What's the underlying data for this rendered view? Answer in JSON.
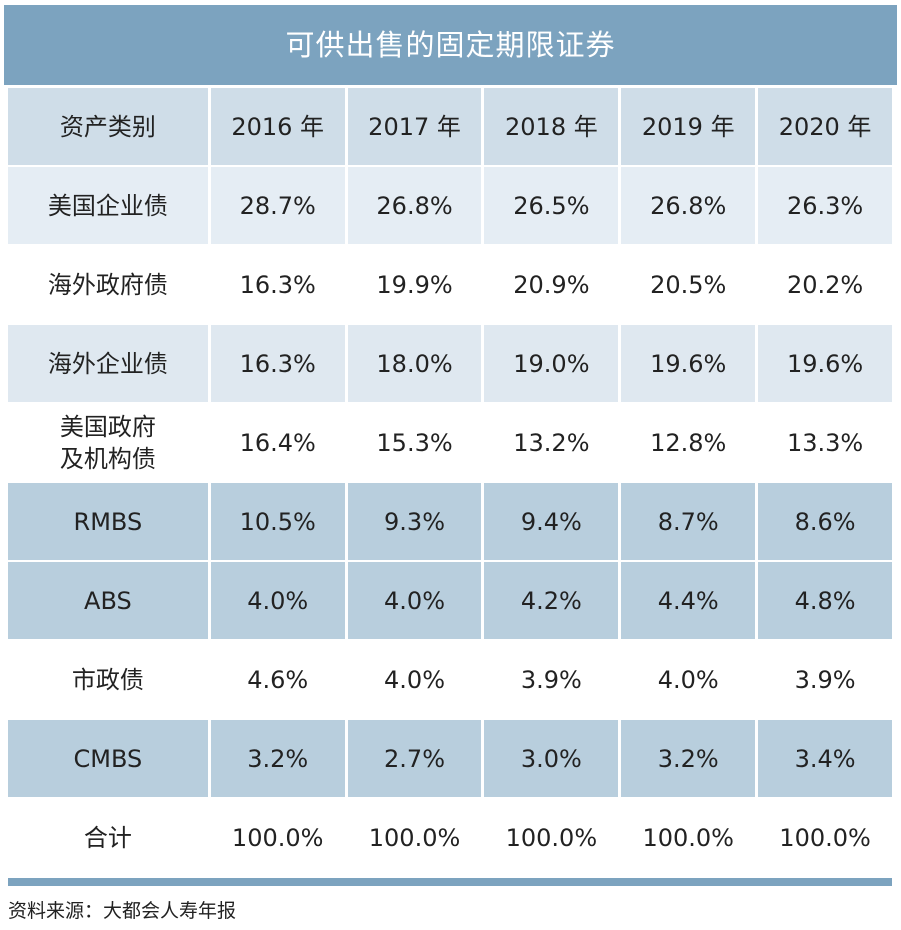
{
  "chart_data": {
    "type": "table",
    "title": "可供出售的固定期限证券",
    "columns": [
      "资产类别",
      "2016 年",
      "2017 年",
      "2018 年",
      "2019 年",
      "2020 年"
    ],
    "rows": [
      {
        "label": "美国企业债",
        "values": [
          "28.7%",
          "26.8%",
          "26.5%",
          "26.8%",
          "26.3%"
        ],
        "color": "#e5edf4"
      },
      {
        "label": "海外政府债",
        "values": [
          "16.3%",
          "19.9%",
          "20.9%",
          "20.5%",
          "20.2%"
        ],
        "color": "#ffffff"
      },
      {
        "label": "海外企业债",
        "values": [
          "16.3%",
          "18.0%",
          "19.0%",
          "19.6%",
          "19.6%"
        ],
        "color": "#dfe8f0"
      },
      {
        "label": "美国政府\n及机构债",
        "values": [
          "16.4%",
          "15.3%",
          "13.2%",
          "12.8%",
          "13.3%"
        ],
        "color": "#ffffff"
      },
      {
        "label": "RMBS",
        "values": [
          "10.5%",
          "9.3%",
          "9.4%",
          "8.7%",
          "8.6%"
        ],
        "color": "#b8cedd"
      },
      {
        "label": "ABS",
        "values": [
          "4.0%",
          "4.0%",
          "4.2%",
          "4.4%",
          "4.8%"
        ],
        "color": "#b8cedd"
      },
      {
        "label": "市政债",
        "values": [
          "4.6%",
          "4.0%",
          "3.9%",
          "4.0%",
          "3.9%"
        ],
        "color": "#ffffff"
      },
      {
        "label": "CMBS",
        "values": [
          "3.2%",
          "2.7%",
          "3.0%",
          "3.2%",
          "3.4%"
        ],
        "color": "#b8cedd"
      },
      {
        "label": "合计",
        "values": [
          "100.0%",
          "100.0%",
          "100.0%",
          "100.0%",
          "100.0%"
        ],
        "color": "#ffffff"
      }
    ],
    "header_color": "#cfdde8",
    "accent_color": "#7ca3bf"
  },
  "source": "资料来源：大都会人寿年报"
}
